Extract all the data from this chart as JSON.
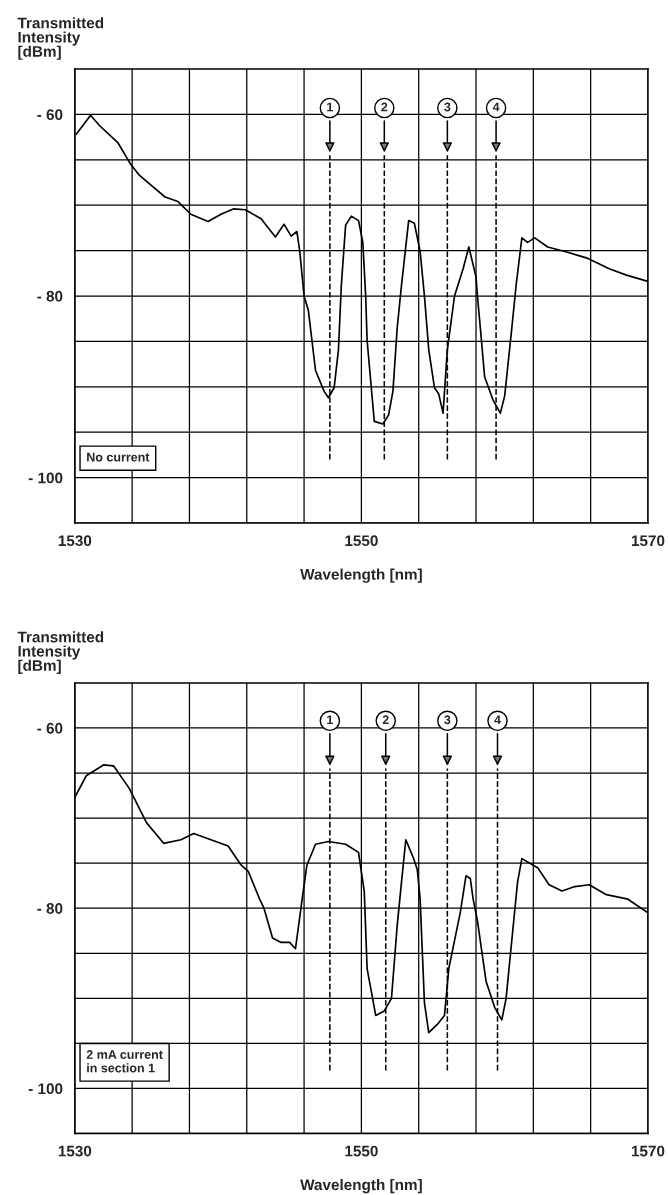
{
  "chart_data": [
    {
      "type": "line",
      "xlabel": "Wavelength [nm]",
      "ylabel": "Transmitted\nIntensity\n[dBm]",
      "xlim": [
        1530,
        1570
      ],
      "ylim": [
        -105,
        -55
      ],
      "xticks": [
        1530,
        {
          "value": 1534,
          "label": null
        },
        {
          "value": 1538,
          "label": null
        },
        {
          "value": 1542,
          "label": null
        },
        {
          "value": 1546,
          "label": null
        },
        1550,
        {
          "value": 1554,
          "label": null
        },
        {
          "value": 1558,
          "label": null
        },
        {
          "value": 1562,
          "label": null
        },
        {
          "value": 1566,
          "label": null
        },
        1570
      ],
      "yticks": [
        {
          "value": -105,
          "label": null
        },
        {
          "value": -100,
          "label": "- 100"
        },
        {
          "value": -95,
          "label": null
        },
        {
          "value": -90,
          "label": null
        },
        {
          "value": -85,
          "label": null
        },
        {
          "value": -80,
          "label": "- 80"
        },
        {
          "value": -75,
          "label": null
        },
        {
          "value": -70,
          "label": null
        },
        {
          "value": -65,
          "label": null
        },
        {
          "value": -60,
          "label": "- 60"
        }
      ],
      "grid": true,
      "marker": "none",
      "line_style": "solid",
      "annotations": [
        "No current",
        {
          "text": "1",
          "x": 1547.8,
          "y": -59.3
        },
        {
          "text": "2",
          "x": 1551.6,
          "y": -59.3
        },
        {
          "text": "3",
          "x": 1556.0,
          "y": -59.3
        },
        {
          "text": "4",
          "x": 1559.4,
          "y": -59.3
        }
      ],
      "ref_lines": [
        {
          "axis": "x",
          "value": 1547.8,
          "line_style": "dashed"
        },
        {
          "axis": "x",
          "value": 1551.6,
          "line_style": "dashed"
        },
        {
          "axis": "x",
          "value": 1556.0,
          "line_style": "dashed"
        },
        {
          "axis": "x",
          "value": 1559.4,
          "line_style": "dashed"
        }
      ],
      "series": [
        {
          "color": "#000000",
          "x": [
            1530.1,
            1531.1,
            1531.7,
            1533.0,
            1533.9,
            1534.5,
            1535.4,
            1536.3,
            1537.2,
            1538.1,
            1539.3,
            1540.2,
            1541.1,
            1541.9,
            1543.0,
            1544.0,
            1544.6,
            1545.1,
            1545.5,
            1545.7,
            1546.0,
            1546.3,
            1546.8,
            1547.4,
            1547.7,
            1548.1,
            1548.4,
            1548.6,
            1548.9,
            1549.3,
            1549.8,
            1550.1,
            1550.3,
            1550.4,
            1550.9,
            1551.5,
            1551.9,
            1552.2,
            1552.5,
            1552.8,
            1553.3,
            1553.7,
            1554.1,
            1554.4,
            1554.7,
            1555.1,
            1555.4,
            1555.7,
            1556.0,
            1556.5,
            1557.1,
            1557.5,
            1558.0,
            1558.1,
            1558.3,
            1558.6,
            1559.2,
            1559.7,
            1560.0,
            1560.5,
            1560.8,
            1561.2,
            1561.6,
            1562.1,
            1563.0,
            1564.2,
            1565.7,
            1567.3,
            1568.5,
            1570.0
          ],
          "values": [
            -62.2,
            -60.1,
            -61.2,
            -63.1,
            -65.5,
            -66.7,
            -67.9,
            -69.1,
            -69.6,
            -71.0,
            -71.8,
            -71.0,
            -70.4,
            -70.5,
            -71.5,
            -73.5,
            -72.1,
            -73.4,
            -72.9,
            -75.1,
            -80,
            -81.6,
            -88.2,
            -90.5,
            -91.2,
            -90.1,
            -85.9,
            -78.8,
            -72.2,
            -71.2,
            -71.7,
            -74.1,
            -80,
            -84.9,
            -93.8,
            -94.1,
            -93.1,
            -90.5,
            -83.5,
            -78.8,
            -71.7,
            -72.0,
            -75.1,
            -80,
            -85.9,
            -90.1,
            -90.8,
            -92.9,
            -85.9,
            -80,
            -77.0,
            -74.6,
            -77.9,
            -80,
            -83.5,
            -88.9,
            -91.5,
            -92.9,
            -91.0,
            -83.5,
            -78.8,
            -73.6,
            -74.1,
            -73.6,
            -74.6,
            -75.1,
            -75.8,
            -77.0,
            -77.7,
            -78.4
          ]
        }
      ]
    },
    {
      "type": "line",
      "xlabel": "Wavelength [nm]",
      "ylabel": "Transmitted\nIntensity\n[dBm]",
      "xlim": [
        1530,
        1570
      ],
      "ylim": [
        -105,
        -55
      ],
      "xticks": [
        1530,
        {
          "value": 1534,
          "label": null
        },
        {
          "value": 1538,
          "label": null
        },
        {
          "value": 1542,
          "label": null
        },
        {
          "value": 1546,
          "label": null
        },
        1550,
        {
          "value": 1554,
          "label": null
        },
        {
          "value": 1558,
          "label": null
        },
        {
          "value": 1562,
          "label": null
        },
        {
          "value": 1566,
          "label": null
        },
        1570
      ],
      "yticks": [
        {
          "value": -105,
          "label": null
        },
        {
          "value": -100,
          "label": "- 100"
        },
        {
          "value": -95,
          "label": null
        },
        {
          "value": -90,
          "label": null
        },
        {
          "value": -85,
          "label": null
        },
        {
          "value": -80,
          "label": "- 80"
        },
        {
          "value": -75,
          "label": null
        },
        {
          "value": -70,
          "label": null
        },
        {
          "value": -65,
          "label": null
        },
        {
          "value": -60,
          "label": "- 60"
        }
      ],
      "grid": true,
      "marker": "none",
      "line_style": "solid",
      "annotations": [
        "2 mA current\nin section 1",
        {
          "text": "1",
          "x": 1547.8,
          "y": -59.2
        },
        {
          "text": "2",
          "x": 1551.7,
          "y": -59.2
        },
        {
          "text": "3",
          "x": 1556.0,
          "y": -59.2
        },
        {
          "text": "4",
          "x": 1559.5,
          "y": -59.2
        }
      ],
      "ref_lines": [
        {
          "axis": "x",
          "value": 1547.8,
          "line_style": "dashed"
        },
        {
          "axis": "x",
          "value": 1551.7,
          "line_style": "dashed"
        },
        {
          "axis": "x",
          "value": 1556.0,
          "line_style": "dashed"
        },
        {
          "axis": "x",
          "value": 1559.5,
          "line_style": "dashed"
        }
      ],
      "series": [
        {
          "color": "#000000",
          "x": [
            1530.0,
            1530.8,
            1532.0,
            1532.7,
            1533.8,
            1535.0,
            1536.2,
            1537.4,
            1538.3,
            1539.5,
            1540.7,
            1541.6,
            1542.1,
            1542.9,
            1543.2,
            1543.8,
            1544.4,
            1545.0,
            1545.4,
            1545.9,
            1546.2,
            1546.8,
            1547.7,
            1548.9,
            1549.8,
            1550.2,
            1550.4,
            1551.0,
            1551.6,
            1552.1,
            1552.5,
            1552.8,
            1553.1,
            1553.6,
            1553.9,
            1554.1,
            1554.4,
            1554.7,
            1555.3,
            1555.8,
            1556.1,
            1556.9,
            1557.3,
            1557.6,
            1557.8,
            1558.1,
            1558.7,
            1559.3,
            1559.8,
            1560.1,
            1560.6,
            1560.9,
            1561.2,
            1562.3,
            1563.1,
            1564.0,
            1564.9,
            1565.9,
            1567.1,
            1568.6,
            1570.0
          ],
          "values": [
            -67.7,
            -65.3,
            -64.1,
            -64.2,
            -66.7,
            -70.5,
            -72.8,
            -72.4,
            -71.7,
            -72.4,
            -73.1,
            -75.2,
            -75.9,
            -79.0,
            -80,
            -83.3,
            -83.8,
            -83.8,
            -84.5,
            -78.6,
            -75.2,
            -72.9,
            -72.6,
            -72.9,
            -73.8,
            -78.1,
            -86.7,
            -91.9,
            -91.4,
            -90.0,
            -81.9,
            -77.1,
            -72.4,
            -74.3,
            -75.7,
            -79.0,
            -90.5,
            -93.8,
            -92.9,
            -91.9,
            -86.7,
            -80.5,
            -76.4,
            -76.7,
            -79.0,
            -81.4,
            -88.1,
            -91.0,
            -92.4,
            -90.0,
            -81.9,
            -77.1,
            -74.5,
            -75.5,
            -77.4,
            -78.1,
            -77.6,
            -77.4,
            -78.5,
            -79.0,
            -80.5
          ]
        }
      ]
    }
  ]
}
